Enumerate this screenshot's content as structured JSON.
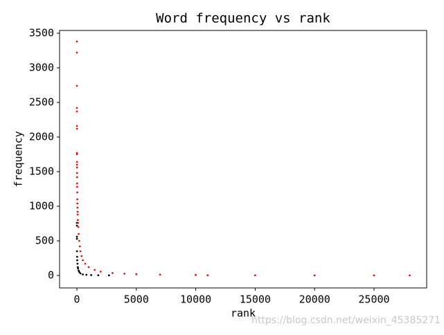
{
  "chart_data": {
    "type": "scatter",
    "title": "Word frequency vs rank",
    "x_label": "rank",
    "y_label": "frequency",
    "xlim": [
      -1457,
      29430
    ],
    "ylim": [
      -180,
      3540
    ],
    "xticks": [
      0,
      5000,
      10000,
      15000,
      20000,
      25000
    ],
    "yticks": [
      0,
      500,
      1000,
      1500,
      2000,
      2500,
      3000,
      3500
    ],
    "series": [
      {
        "color": "#000000",
        "x": [
          1,
          2,
          3,
          5,
          10,
          20,
          30,
          50,
          80,
          100,
          150,
          200,
          300,
          500,
          800,
          1200,
          1800,
          2700
        ],
        "values": [
          760,
          720,
          560,
          530,
          350,
          270,
          220,
          170,
          120,
          100,
          70,
          50,
          30,
          15,
          10,
          6,
          4,
          2
        ]
      },
      {
        "color": "#e8120c",
        "x": [
          1,
          2,
          3,
          4,
          5,
          6,
          7,
          8,
          9,
          10,
          12,
          14,
          16,
          18,
          20,
          25,
          30,
          35,
          40,
          50,
          60,
          70,
          80,
          100,
          120,
          150,
          200,
          250,
          300,
          400,
          500,
          700,
          1000,
          1500,
          2000,
          3000,
          4000,
          5000,
          7000,
          10000,
          11000,
          15000,
          20000,
          25000,
          28000
        ],
        "values": [
          3380,
          3220,
          2740,
          2420,
          2370,
          2160,
          2120,
          1770,
          1750,
          1640,
          1600,
          1560,
          1480,
          1420,
          1330,
          1280,
          1200,
          1100,
          1040,
          980,
          920,
          880,
          800,
          760,
          700,
          600,
          500,
          420,
          350,
          280,
          220,
          170,
          120,
          80,
          55,
          35,
          25,
          18,
          12,
          8,
          3,
          2,
          1,
          1,
          1
        ]
      }
    ]
  },
  "watermark": "https://blog.csdn.net/weixin_45385271"
}
